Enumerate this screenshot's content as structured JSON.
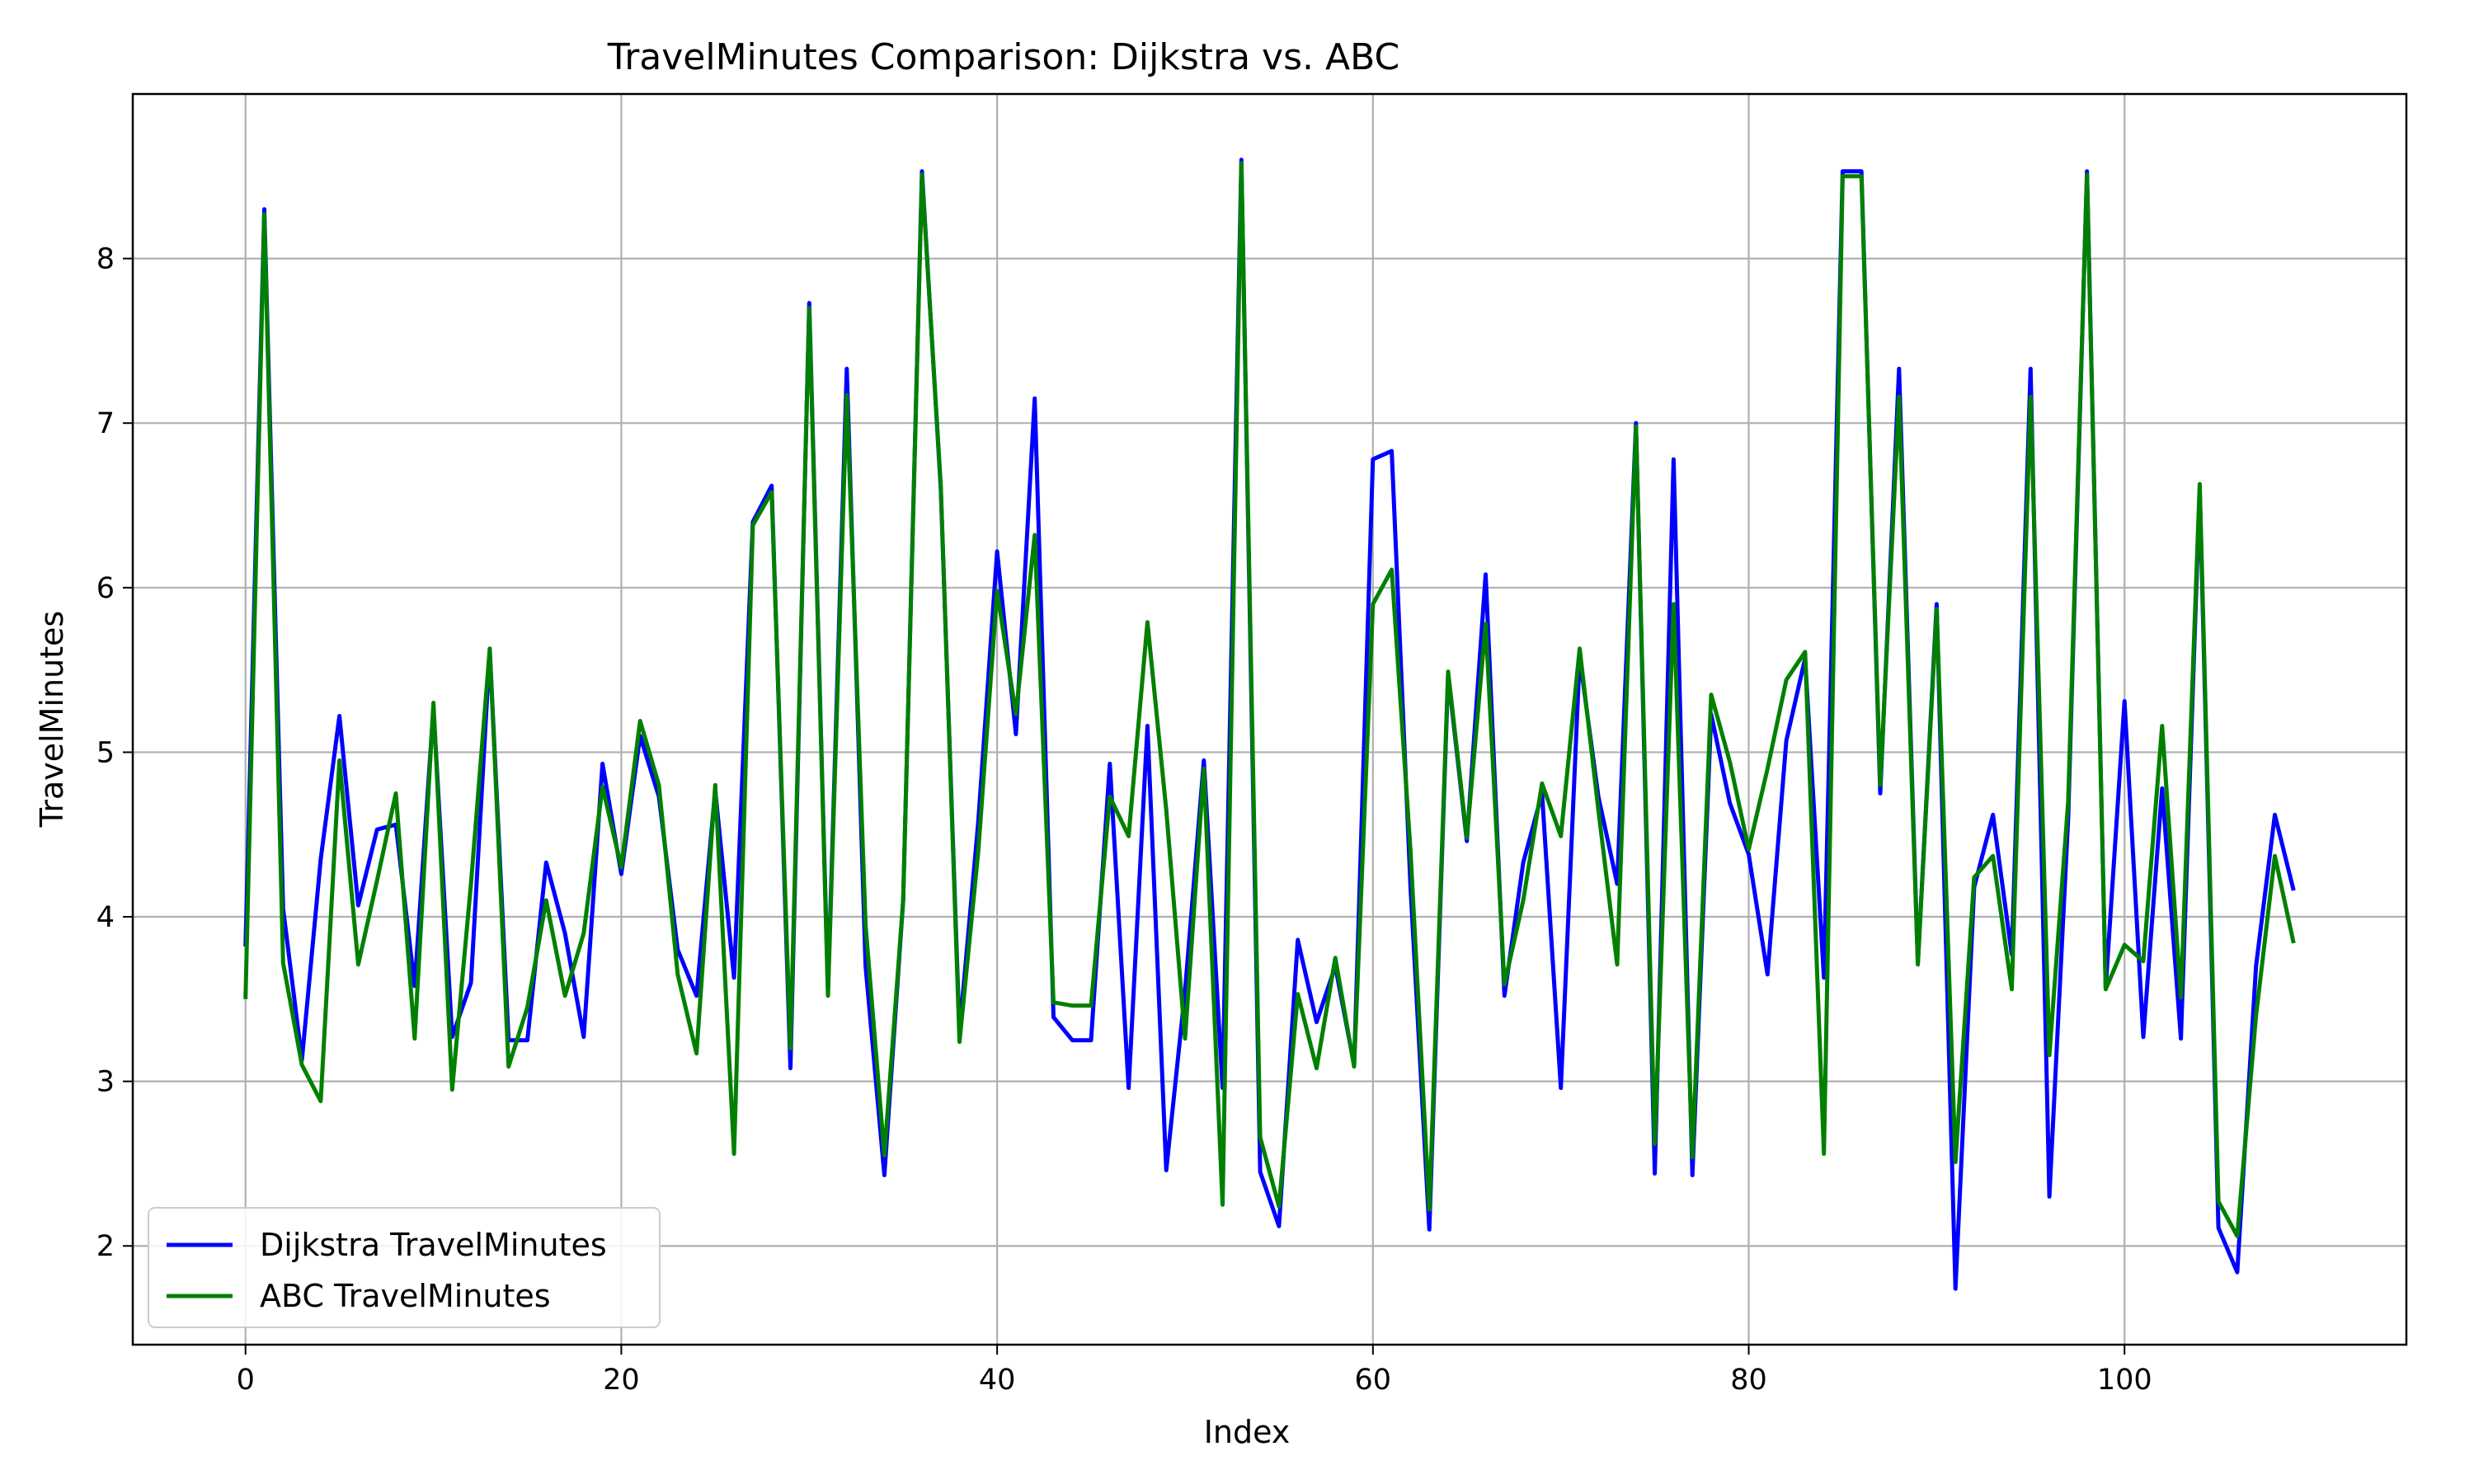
{
  "chart_data": {
    "type": "line",
    "title": "TravelMinutes Comparison: Dijkstra vs. ABC",
    "xlabel": "Index",
    "ylabel": "TravelMinutes",
    "xlim": [
      -6,
      115
    ],
    "ylim": [
      1.4,
      9.0
    ],
    "xticks": [
      0,
      20,
      40,
      60,
      80,
      100
    ],
    "yticks": [
      2,
      3,
      4,
      5,
      6,
      7,
      8
    ],
    "grid": true,
    "legend_position": "lower-left",
    "series": [
      {
        "name": "Dijkstra TravelMinutes",
        "color": "#0000ff",
        "values": [
          3.82,
          8.3,
          4.05,
          3.13,
          4.35,
          5.22,
          4.07,
          4.53,
          4.56,
          3.58,
          5.27,
          3.27,
          3.6,
          5.62,
          3.25,
          3.25,
          4.33,
          3.9,
          3.27,
          4.93,
          4.26,
          5.1,
          4.73,
          3.8,
          3.52,
          4.77,
          3.63,
          6.4,
          6.62,
          3.08,
          7.73,
          3.55,
          7.33,
          3.7,
          2.43,
          4.1,
          8.53,
          6.6,
          3.3,
          4.58,
          6.22,
          5.11,
          7.15,
          3.39,
          3.25,
          3.25,
          4.93,
          2.96,
          5.16,
          2.46,
          3.55,
          4.95,
          2.96,
          8.6,
          2.45,
          2.12,
          3.86,
          3.36,
          3.7,
          3.1,
          6.78,
          6.83,
          4.18,
          2.1,
          5.47,
          4.46,
          6.08,
          3.52,
          4.33,
          4.75,
          2.96,
          5.58,
          4.73,
          4.2,
          7.0,
          2.44,
          6.78,
          2.43,
          5.23,
          4.69,
          4.38,
          3.65,
          5.07,
          5.57,
          3.63,
          8.53,
          8.53,
          4.75,
          7.33,
          3.72,
          5.9,
          1.74,
          4.18,
          4.62,
          3.77,
          7.33,
          2.3,
          4.6,
          8.53,
          3.57,
          5.31,
          3.27,
          4.78,
          3.26,
          6.6,
          2.11,
          1.84,
          3.7,
          4.62,
          4.16
        ]
      },
      {
        "name": "ABC TravelMinutes",
        "color": "#008000",
        "values": [
          3.5,
          8.27,
          3.72,
          3.1,
          2.88,
          4.95,
          3.71,
          4.22,
          4.75,
          3.26,
          5.3,
          2.95,
          4.2,
          5.63,
          3.09,
          3.45,
          4.1,
          3.52,
          3.9,
          4.79,
          4.3,
          5.19,
          4.8,
          3.65,
          3.17,
          4.8,
          2.56,
          6.38,
          6.58,
          3.2,
          7.7,
          3.52,
          7.17,
          3.95,
          2.55,
          4.1,
          8.51,
          6.62,
          3.24,
          4.4,
          5.98,
          5.23,
          6.32,
          3.48,
          3.46,
          3.46,
          4.73,
          4.49,
          5.79,
          4.65,
          3.26,
          4.9,
          2.25,
          8.58,
          2.66,
          2.24,
          3.53,
          3.08,
          3.75,
          3.09,
          5.9,
          6.11,
          4.4,
          2.22,
          5.49,
          4.48,
          5.78,
          3.59,
          4.1,
          4.81,
          4.49,
          5.63,
          4.65,
          3.71,
          6.98,
          2.62,
          5.9,
          2.54,
          5.35,
          4.94,
          4.41,
          4.9,
          5.44,
          5.61,
          2.56,
          8.5,
          8.5,
          4.8,
          7.16,
          3.71,
          5.87,
          2.51,
          4.24,
          4.37,
          3.56,
          7.16,
          3.16,
          4.7,
          8.51,
          3.56,
          3.83,
          3.73,
          5.16,
          3.51,
          6.63,
          2.27,
          2.06,
          3.4,
          4.37,
          3.84
        ]
      }
    ]
  }
}
